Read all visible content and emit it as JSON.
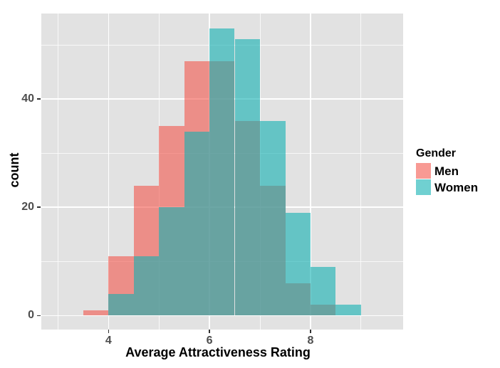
{
  "figure": {
    "background_color": "#ffffff",
    "panel_background_color": "#e2e2e2",
    "gridline_color": "#ffffff",
    "tick_color": "#333333",
    "tick_label_color": "#4d4d4d",
    "title_color": "#000000"
  },
  "chart_data": {
    "type": "histogram",
    "title": "",
    "xlabel": "Average Attractiveness Rating",
    "ylabel": "count",
    "bin_width": 0.5,
    "bin_edges": [
      3.5,
      4.0,
      4.5,
      5.0,
      5.5,
      6.0,
      6.5,
      7.0,
      7.5,
      8.0,
      8.5,
      9.0
    ],
    "series": [
      {
        "name": "Men",
        "fill": "rgba(244,87,76,0.6)",
        "counts": [
          1,
          11,
          24,
          35,
          47,
          47,
          36,
          24,
          6,
          2,
          0
        ]
      },
      {
        "name": "Women",
        "fill": "rgba(17,176,179,0.6)",
        "counts": [
          0,
          4,
          11,
          20,
          34,
          53,
          51,
          36,
          19,
          9,
          2
        ]
      }
    ],
    "x_ticks": [
      4,
      6,
      8
    ],
    "x_tick_labels": [
      "4",
      "6",
      "8"
    ],
    "x_minor_gridlines": [
      3,
      5,
      7,
      9
    ],
    "y_ticks": [
      0,
      20,
      40
    ],
    "y_tick_labels": [
      "0",
      "20",
      "40"
    ],
    "y_minor_gridlines": [
      10,
      30,
      50
    ],
    "xlim": [
      2.67,
      9.83
    ],
    "ylim": [
      -2.6,
      55.7
    ],
    "grid": true,
    "legend": {
      "title": "Gender",
      "position": "right",
      "entries": [
        "Men",
        "Women"
      ]
    }
  }
}
